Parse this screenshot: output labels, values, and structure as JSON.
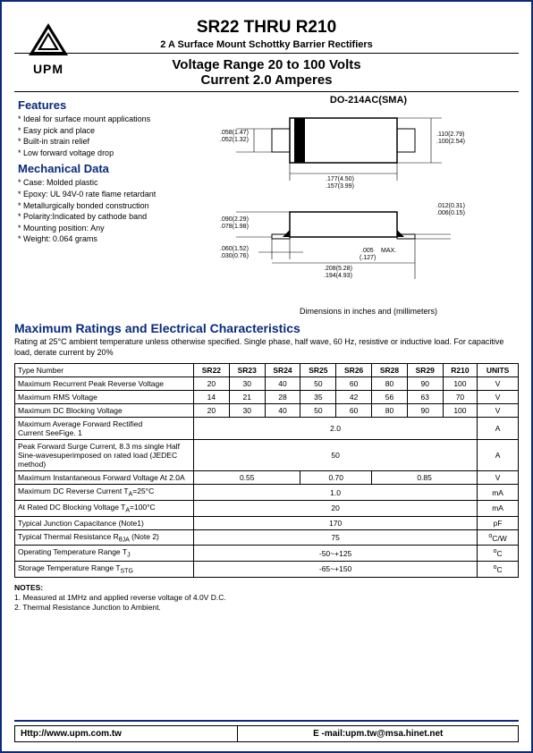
{
  "logo": {
    "text": "UPM"
  },
  "header": {
    "title": "SR22 THRU R210",
    "subtitle": "2 A  Surface Mount Schottky Barrier Rectifiers",
    "voltage": "Voltage Range 20 to 100 Volts",
    "current": "Current 2.0 Amperes"
  },
  "features": {
    "heading": "Features",
    "items": [
      "Ideal for surface mount applications",
      "Easy pick and place",
      "Built-in strain relief",
      "Low forward voltage drop"
    ]
  },
  "mechanical": {
    "heading": "Mechanical Data",
    "items": [
      "Case: Molded plastic",
      "Epoxy: UL 94V-0 rate flame retardant",
      "Metallurgically bonded construction",
      "Polarity:Indicated by cathode band",
      "Mounting position: Any",
      "Weight: 0.064 grams"
    ]
  },
  "package": {
    "title": "DO-214AC(SMA)",
    "caption": "Dimensions  in inches and  (millimeters)",
    "dims": {
      "d1a": ".058(1.47)",
      "d1b": ".052(1.32)",
      "d2a": ".110(2.79)",
      "d2b": ".100(2.54)",
      "d3a": ".177(4.50)",
      "d3b": ".157(3.99)",
      "d4a": ".012(0.31)",
      "d4b": ".006(0.15)",
      "d5a": ".090(2.29)",
      "d5b": ".078(1.98)",
      "d6a": ".060(1.52)",
      "d6b": ".030(0.76)",
      "d7a": ".005",
      "d7b": "(.127)",
      "d7c": "MAX.",
      "d8a": ".208(5.28)",
      "d8b": ".194(4.93)"
    }
  },
  "ratings": {
    "heading": "Maximum Ratings and Electrical Characteristics",
    "note": "Rating at 25°C ambient temperature unless otherwise specified. Single phase, half wave,\n60 Hz, resistive or inductive load. For capacitive load, derate current by 20%",
    "type_number_label": "Type Number",
    "columns": [
      "SR22",
      "SR23",
      "SR24",
      "SR25",
      "SR26",
      "SR28",
      "SR29",
      "R210"
    ],
    "units_label": "UNITS",
    "rows": [
      {
        "label": "Maximum Recurrent Peak Reverse Voltage",
        "cells": [
          "20",
          "30",
          "40",
          "50",
          "60",
          "80",
          "90",
          "100"
        ],
        "unit": "V"
      },
      {
        "label": "Maximum RMS Voltage",
        "cells": [
          "14",
          "21",
          "28",
          "35",
          "42",
          "56",
          "63",
          "70"
        ],
        "unit": "V"
      },
      {
        "label": "Maximum DC Blocking Voltage",
        "cells": [
          "20",
          "30",
          "40",
          "50",
          "60",
          "80",
          "90",
          "100"
        ],
        "unit": "V"
      },
      {
        "label": "Maximum Average Forward Rectified\nCurrent SeeFige. 1",
        "span": "2.0",
        "unit": "A"
      },
      {
        "label": "Peak Forward Surge Current, 8.3 ms single Half\nSine-wavesuperimposed on rated load (JEDEC method)",
        "span": "50",
        "unit": "A"
      },
      {
        "label": "Maximum Instantaneous Forward Voltage At 2.0A",
        "groups": [
          "0.55",
          "0.70",
          "0.85"
        ],
        "groupspans": [
          3,
          2,
          3
        ],
        "unit": "V"
      },
      {
        "label": "Maximum DC Reverse Current TA=25°C",
        "span": "1.0",
        "unit": "mA"
      },
      {
        "label": "At Rated DC Blocking Voltage TA=100°C",
        "span": "20",
        "unit": "mA"
      },
      {
        "label": "Typical Junction Capacitance (Note1)",
        "span": "170",
        "unit": "pF"
      },
      {
        "label": "Typical Thermal Resistance RθJA (Note 2)",
        "span": "75",
        "unit": "°C/W"
      },
      {
        "label": "Operating  Temperature Range TJ",
        "span": "-50~+125",
        "unit": "°C"
      },
      {
        "label": "Storage Temperature Range TSTG",
        "span": "-65~+150",
        "unit": "°C"
      }
    ]
  },
  "notes": {
    "heading": "NOTES:",
    "items": [
      "1. Measured at 1MHz and applied reverse voltage of 4.0V D.C.",
      "2. Thermal Resistance Junction to Ambient."
    ]
  },
  "footer": {
    "url": "Http://www.upm.com.tw",
    "email": "E -mail:upm.tw@msa.hinet.net"
  },
  "colors": {
    "brand": "#0a2a7a"
  }
}
